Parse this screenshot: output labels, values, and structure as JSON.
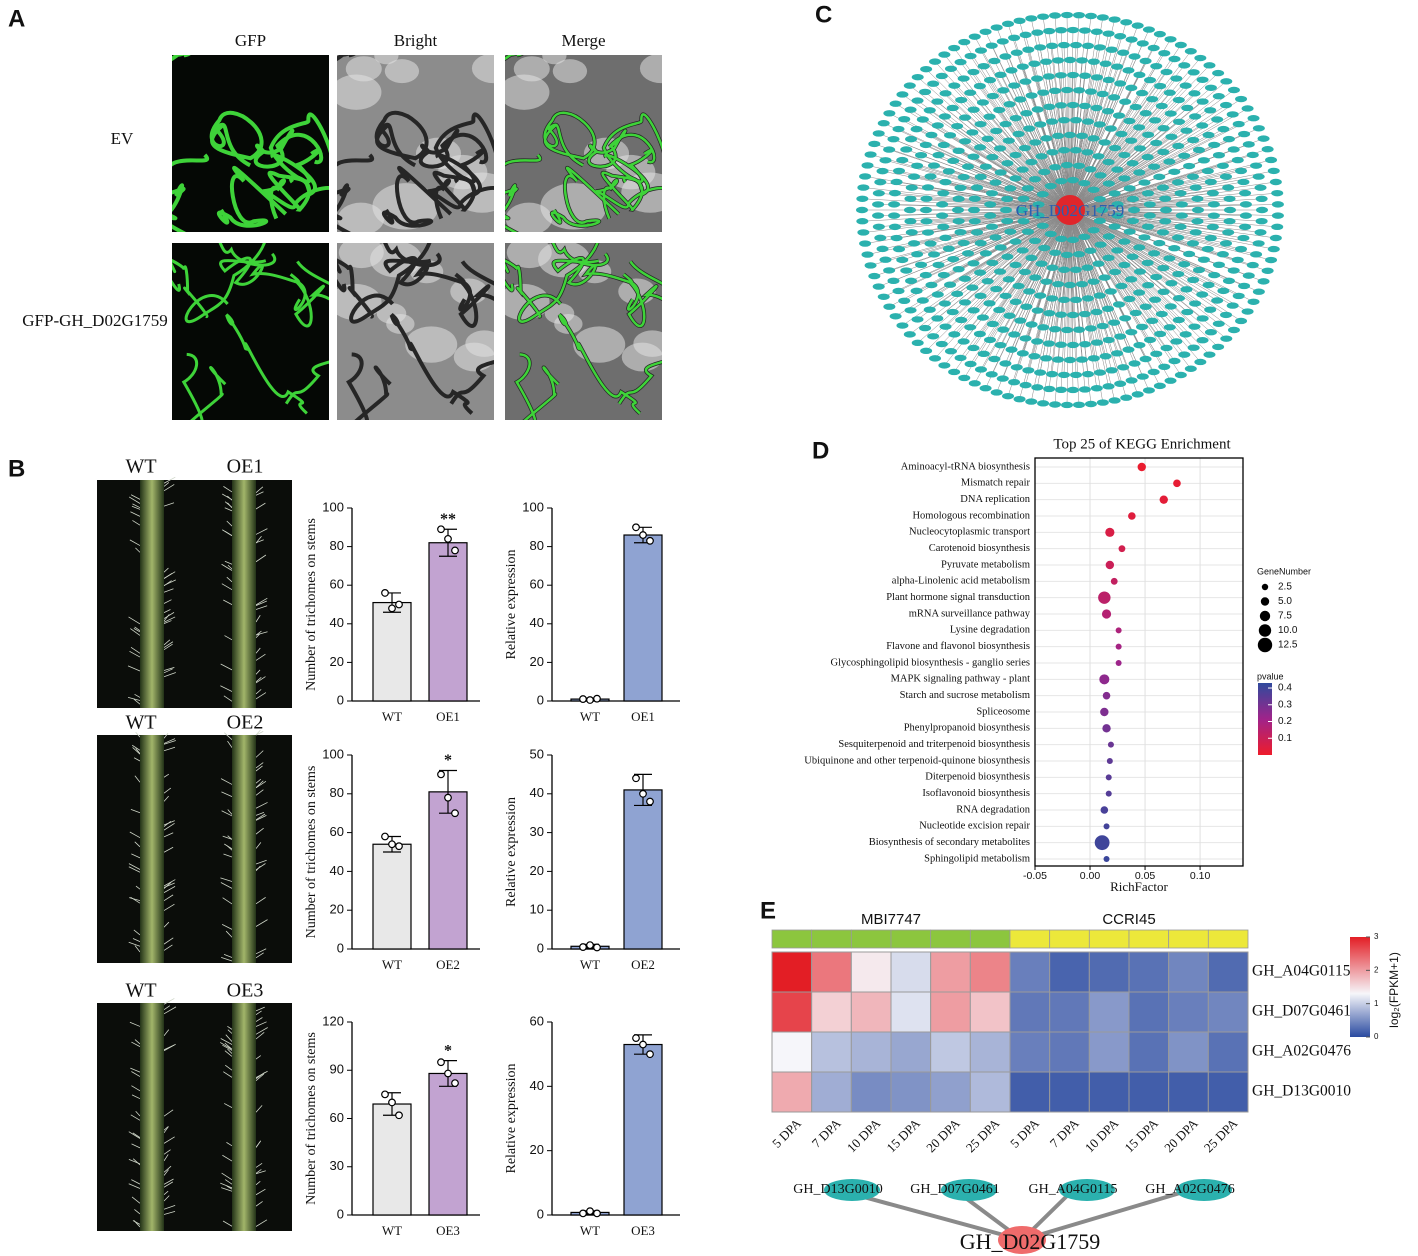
{
  "panel_labels": [
    "A",
    "B",
    "C",
    "D",
    "E"
  ],
  "panel_a": {
    "columns": [
      "GFP",
      "Bright",
      "Merge"
    ],
    "rows": [
      "EV",
      "GFP-GH_D02G1759"
    ]
  },
  "panel_b": {
    "photos": [
      [
        "WT",
        "OE1"
      ],
      [
        "WT",
        "OE2"
      ],
      [
        "WT",
        "OE3"
      ]
    ]
  },
  "panel_c": {
    "hub": "GH_D02G1759"
  },
  "chart_data": [
    {
      "type": "bar",
      "ylabel": "Number of trichomes on stems",
      "categories": [
        "WT",
        "OE1"
      ],
      "values": [
        51,
        82
      ],
      "errors": [
        5,
        7
      ],
      "points": [
        [
          56,
          48,
          50
        ],
        [
          89,
          84,
          78
        ]
      ],
      "significance": [
        null,
        "**"
      ],
      "colors": [
        "#e8e8e8",
        "#c2a3d1"
      ],
      "ylim": [
        0,
        100
      ],
      "yticks": [
        0,
        20,
        40,
        60,
        80,
        100
      ]
    },
    {
      "type": "bar",
      "ylabel": "Relative expression",
      "categories": [
        "WT",
        "OE1"
      ],
      "values": [
        1,
        86
      ],
      "errors": [
        0.5,
        4
      ],
      "points": [
        [
          1,
          0.5,
          1.2
        ],
        [
          90,
          86,
          83
        ]
      ],
      "significance": [
        null,
        null
      ],
      "colors": [
        "#8fa3d2",
        "#8fa3d2"
      ],
      "ylim": [
        0,
        100
      ],
      "yticks": [
        0,
        20,
        40,
        60,
        80,
        100
      ]
    },
    {
      "type": "bar",
      "ylabel": "Number of trichomes on stems",
      "categories": [
        "WT",
        "OE2"
      ],
      "values": [
        54,
        81
      ],
      "errors": [
        4,
        11
      ],
      "points": [
        [
          58,
          54,
          53
        ],
        [
          90,
          78,
          70
        ]
      ],
      "significance": [
        null,
        "*"
      ],
      "colors": [
        "#e8e8e8",
        "#c2a3d1"
      ],
      "ylim": [
        0,
        100
      ],
      "yticks": [
        0,
        20,
        40,
        60,
        80,
        100
      ]
    },
    {
      "type": "bar",
      "ylabel": "Relative expression",
      "categories": [
        "WT",
        "OE2"
      ],
      "values": [
        0.7,
        41
      ],
      "errors": [
        0.5,
        4
      ],
      "points": [
        [
          0.5,
          1,
          0.4
        ],
        [
          44,
          40,
          38
        ]
      ],
      "significance": [
        null,
        null
      ],
      "colors": [
        "#8fa3d2",
        "#8fa3d2"
      ],
      "ylim": [
        0,
        50
      ],
      "yticks": [
        0,
        10,
        20,
        30,
        40,
        50
      ]
    },
    {
      "type": "bar",
      "ylabel": "Number of trichomes on stems",
      "categories": [
        "WT",
        "OE3"
      ],
      "values": [
        69,
        88
      ],
      "errors": [
        7,
        8
      ],
      "points": [
        [
          75,
          70,
          62
        ],
        [
          95,
          88,
          82
        ]
      ],
      "significance": [
        null,
        "*"
      ],
      "colors": [
        "#e8e8e8",
        "#c2a3d1"
      ],
      "ylim": [
        0,
        120
      ],
      "yticks": [
        0,
        30,
        60,
        90,
        120
      ]
    },
    {
      "type": "bar",
      "ylabel": "Relative expression",
      "categories": [
        "WT",
        "OE3"
      ],
      "values": [
        0.8,
        53
      ],
      "errors": [
        0.5,
        3
      ],
      "points": [
        [
          0.5,
          1.2,
          0.5
        ],
        [
          55,
          53,
          50
        ]
      ],
      "significance": [
        null,
        null
      ],
      "colors": [
        "#8fa3d2",
        "#8fa3d2"
      ],
      "ylim": [
        0,
        60
      ],
      "yticks": [
        0,
        20,
        40,
        60
      ]
    },
    {
      "type": "dot",
      "title": "Top 25 of KEGG Enrichment",
      "xlabel": "RichFactor",
      "categories": [
        "Aminoacyl-tRNA biosynthesis",
        "Mismatch repair",
        "DNA replication",
        "Homologous recombination",
        "Nucleocytoplasmic transport",
        "Carotenoid biosynthesis",
        "Pyruvate metabolism",
        "alpha-Linolenic acid metabolism",
        "Plant hormone signal transduction",
        "mRNA surveillance pathway",
        "Lysine degradation",
        "Flavone and flavonol biosynthesis",
        "Glycosphingolipid biosynthesis - ganglio series",
        "MAPK signaling pathway - plant",
        "Starch and sucrose metabolism",
        "Spliceosome",
        "Phenylpropanoid biosynthesis",
        "Sesquiterpenoid and triterpenoid biosynthesis",
        "Ubiquinone and other terpenoid-quinone biosynthesis",
        "Diterpenoid biosynthesis",
        "Isoflavonoid biosynthesis",
        "RNA degradation",
        "Nucleotide excision repair",
        "Biosynthesis of secondary metabolites",
        "Sphingolipid metabolism"
      ],
      "x": [
        0.047,
        0.079,
        0.067,
        0.038,
        0.018,
        0.029,
        0.018,
        0.022,
        0.013,
        0.015,
        0.026,
        0.026,
        0.026,
        0.013,
        0.015,
        0.013,
        0.015,
        0.019,
        0.018,
        0.017,
        0.017,
        0.013,
        0.015,
        0.011,
        0.015
      ],
      "sizes": [
        5,
        4,
        5,
        4,
        6,
        3,
        5,
        3,
        10,
        6,
        2,
        2,
        2,
        7,
        4,
        5,
        5,
        2,
        2,
        2,
        2,
        4,
        2,
        13,
        2
      ],
      "pvalues": [
        0.01,
        0.02,
        0.03,
        0.04,
        0.06,
        0.08,
        0.1,
        0.12,
        0.14,
        0.16,
        0.18,
        0.2,
        0.22,
        0.25,
        0.27,
        0.28,
        0.3,
        0.32,
        0.34,
        0.35,
        0.36,
        0.38,
        0.39,
        0.4,
        0.41
      ],
      "xlim": [
        -0.05,
        0.139
      ],
      "xticks": [
        {
          "value": -0.05,
          "label": "-0.05"
        },
        {
          "value": 0,
          "label": "0.00"
        },
        {
          "value": 0.05,
          "label": "0.05"
        },
        {
          "value": 0.1,
          "label": "0.10"
        }
      ],
      "grid": true,
      "size_legend": {
        "title": "GeneNumber",
        "values": [
          2.5,
          {
            "value": 5,
            "label": "5.0"
          },
          7.5,
          {
            "value": 10,
            "label": "10.0"
          },
          12.5
        ]
      },
      "color_legend": {
        "title": "pvalue",
        "lim": [
          0,
          0.43
        ],
        "ticks": [
          0.1,
          0.2,
          0.3,
          0.4
        ],
        "colors": [
          "#ee1c2b",
          "#a0238a",
          "#2f4a9d"
        ]
      }
    },
    {
      "type": "heatmap",
      "groups": [
        {
          "name": "MBI7747",
          "color": "#8cc63e",
          "columns": 6
        },
        {
          "name": "CCRI45",
          "color": "#ece83a",
          "columns": 6
        }
      ],
      "columns": [
        "5 DPA",
        "7 DPA",
        "10 DPA",
        "15 DPA",
        "20 DPA",
        "25 DPA",
        "5 DPA",
        "7 DPA",
        "10 DPA",
        "15 DPA",
        "20 DPA",
        "25 DPA"
      ],
      "rows": [
        "GH_A04G0115",
        "GH_D07G0461",
        "GH_A02G0476",
        "GH_D13G0010"
      ],
      "values": [
        [
          3.0,
          2.3,
          1.4,
          1.1,
          2.0,
          2.2,
          0.4,
          0.2,
          0.25,
          0.3,
          0.45,
          0.25
        ],
        [
          2.7,
          1.6,
          1.8,
          1.15,
          2.0,
          1.7,
          0.35,
          0.35,
          0.6,
          0.3,
          0.4,
          0.45
        ],
        [
          1.3,
          0.9,
          0.8,
          0.7,
          0.95,
          0.8,
          0.4,
          0.35,
          0.6,
          0.3,
          0.55,
          0.3
        ],
        [
          1.9,
          0.75,
          0.5,
          0.55,
          0.65,
          0.85,
          0.15,
          0.15,
          0.15,
          0.15,
          0.15,
          0.15
        ]
      ],
      "colorbar": {
        "title": "log₂(FPKM+1)",
        "lim": [
          0,
          3
        ],
        "ticks": [
          0,
          1,
          2,
          3
        ],
        "stops": [
          {
            "value": 0,
            "color": "#2a4aa0"
          },
          {
            "value": 1.3,
            "color": "#f6f6fa"
          },
          {
            "value": 3,
            "color": "#e31e25"
          }
        ]
      }
    }
  ],
  "panel_e_network": {
    "nodes": [
      "GH_D13G0010",
      "GH_D07G0461",
      "GH_A04G0115",
      "GH_A02G0476"
    ],
    "hub": "GH_D02G1759"
  }
}
